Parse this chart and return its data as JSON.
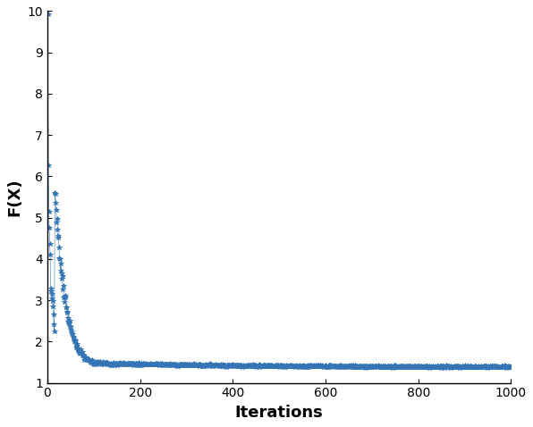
{
  "xlabel": "Iterations",
  "ylabel": "F(X)",
  "xlim": [
    0,
    1000
  ],
  "ylim": [
    1,
    10
  ],
  "yticks": [
    1,
    2,
    3,
    4,
    5,
    6,
    7,
    8,
    9,
    10
  ],
  "xticks": [
    0,
    200,
    400,
    600,
    800,
    1000
  ],
  "line_color": "#3575b5",
  "marker": "*",
  "markersize": 4,
  "figsize": [
    5.96,
    4.78
  ],
  "dpi": 100,
  "n_iterations": 1000,
  "convergence_end_value": 1.38,
  "convergence_knee": 100,
  "xlabel_fontsize": 13,
  "ylabel_fontsize": 13,
  "tick_fontsize": 10,
  "bg_color": "#ffffff",
  "spike_iters": [
    1,
    2,
    3,
    4,
    5,
    6,
    7,
    8,
    9,
    10,
    11,
    12,
    13,
    14,
    15
  ],
  "spike_values": [
    9.9,
    6.3,
    5.1,
    4.75,
    4.35,
    4.05,
    3.3,
    3.25,
    3.15,
    3.08,
    3.0,
    2.85,
    2.65,
    2.45,
    2.25
  ]
}
